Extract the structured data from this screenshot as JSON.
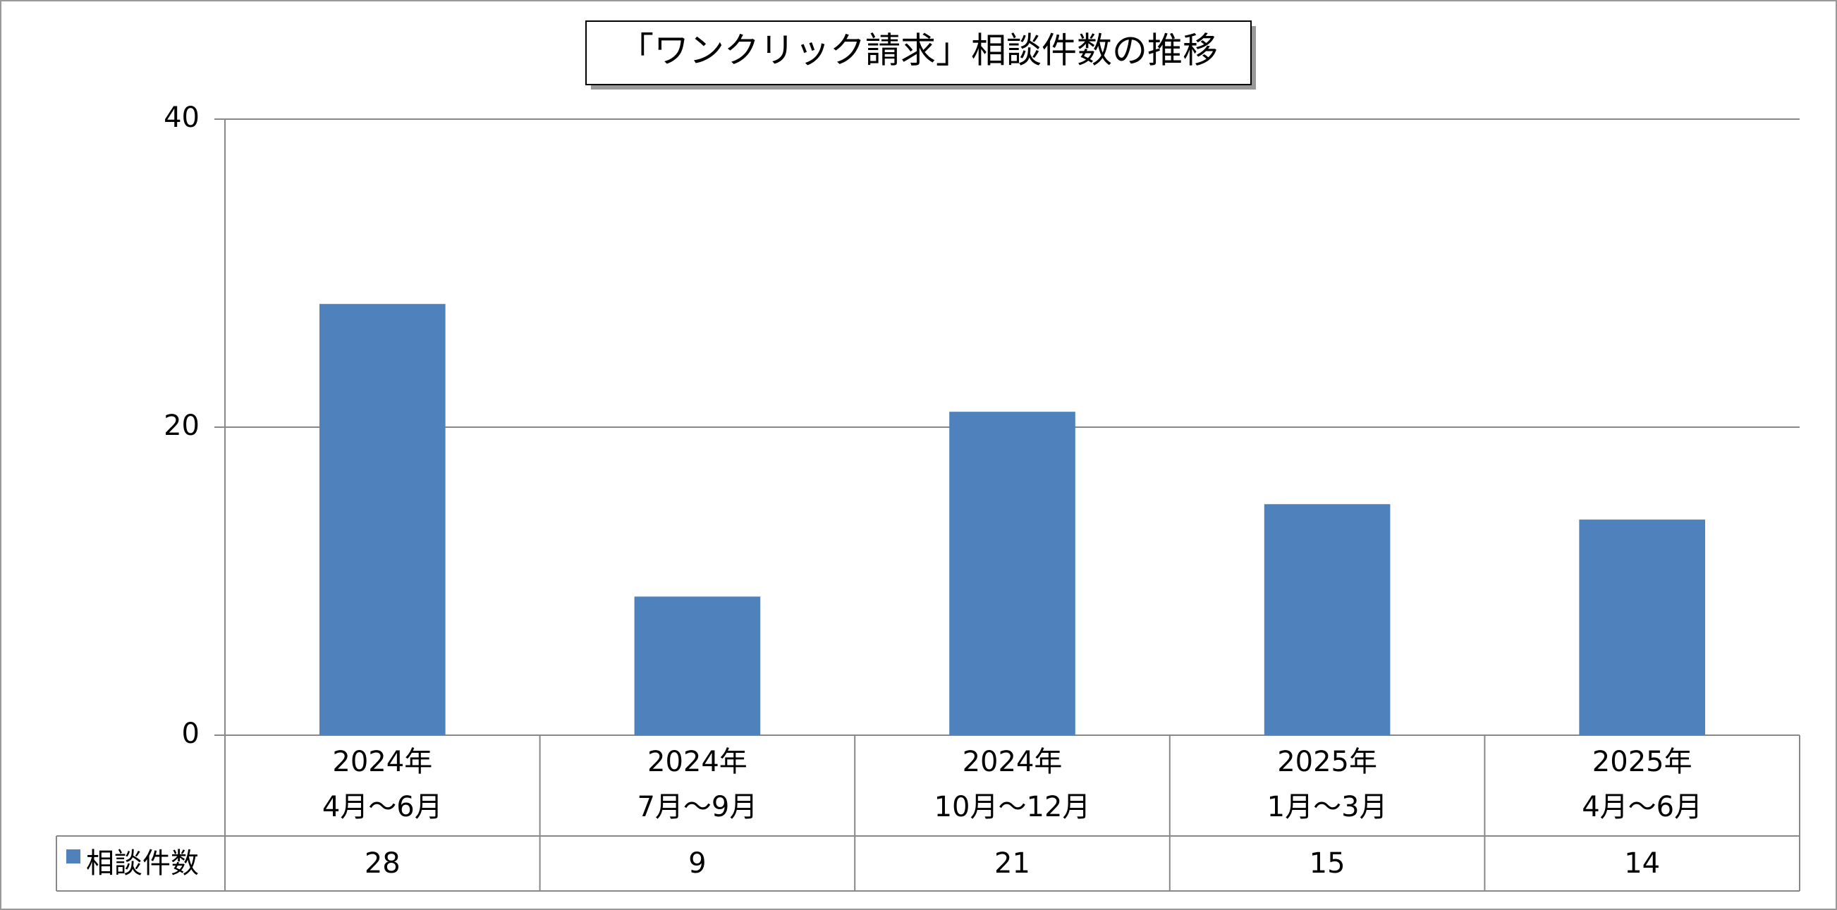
{
  "chart_data": {
    "type": "bar",
    "title": "「ワンクリック請求」相談件数の推移",
    "categories": [
      "2024年\n4月～6月",
      "2024年\n7月～9月",
      "2024年\n10月～12月",
      "2025年\n1月～3月",
      "2025年\n4月～6月"
    ],
    "series": [
      {
        "name": "相談件数",
        "color": "#4f81bd",
        "values": [
          28,
          9,
          21,
          15,
          14
        ]
      }
    ],
    "ylim": [
      0,
      40
    ],
    "yticks": [
      0,
      20,
      40
    ],
    "grid": true
  }
}
